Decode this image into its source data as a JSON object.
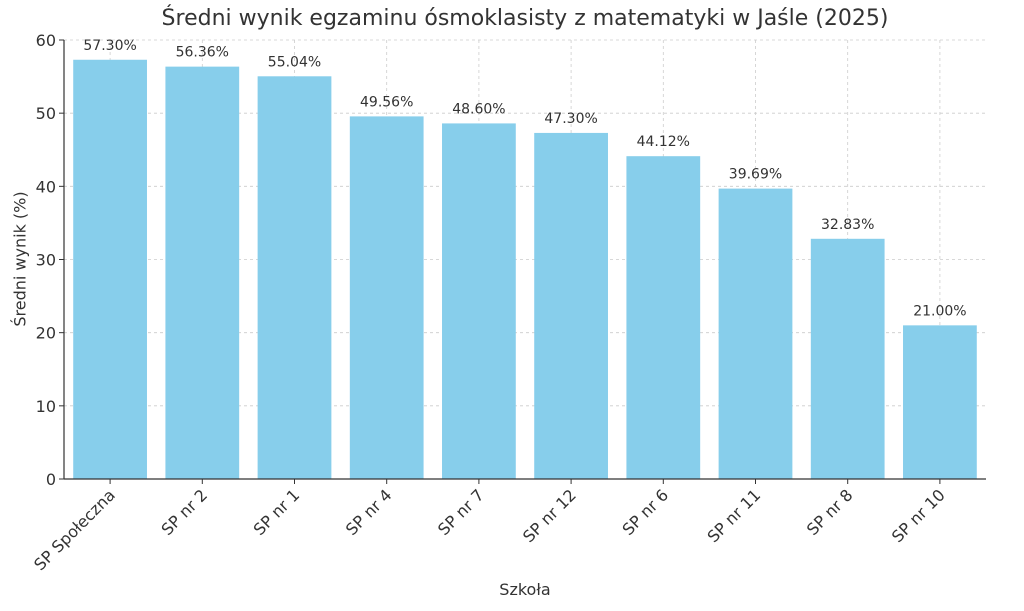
{
  "chart_data": {
    "type": "bar",
    "title": "Średni wynik egzaminu ósmoklasisty z matematyki w Jaśle (2025)",
    "xlabel": "Szkoła",
    "ylabel": "Średni wynik (%)",
    "categories": [
      "SP Społeczna",
      "SP nr 2",
      "SP nr 1",
      "SP nr 4",
      "SP nr 7",
      "SP nr 12",
      "SP nr 6",
      "SP nr 11",
      "SP nr 8",
      "SP nr 10"
    ],
    "values": [
      57.3,
      56.36,
      55.04,
      49.56,
      48.6,
      47.3,
      44.12,
      39.69,
      32.83,
      21.0
    ],
    "data_labels": [
      "57.30%",
      "56.36%",
      "55.04%",
      "49.56%",
      "48.60%",
      "47.30%",
      "44.12%",
      "39.69%",
      "32.83%",
      "21.00%"
    ],
    "ylim": [
      0,
      60
    ],
    "yticks": [
      0,
      10,
      20,
      30,
      40,
      50,
      60
    ],
    "grid": true,
    "bar_color": "#87CEEB",
    "grid_color": "#cccccc",
    "text_color": "#333333"
  }
}
